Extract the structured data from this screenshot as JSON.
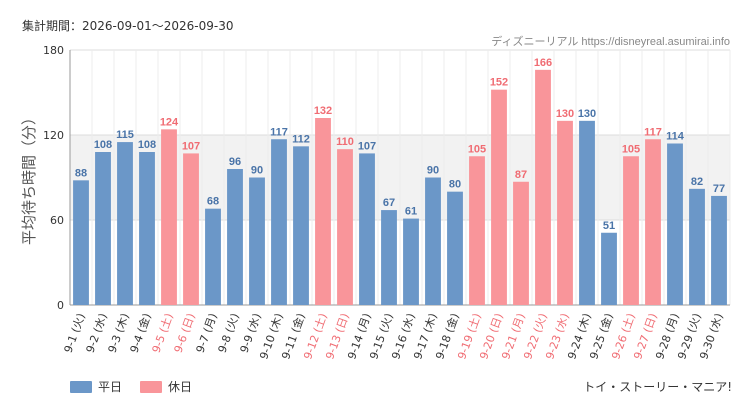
{
  "header": {
    "period_label": "集計期間：2026-09-01～2026-09-30",
    "source_label": "ディズニーリアル https://disneyreal.asumirai.info"
  },
  "footer": {
    "credit": "トイ・ストーリー・マニア!"
  },
  "colors": {
    "weekday": "#6b97c8",
    "holiday": "#f9959a",
    "weekday_text": "#4a74a8",
    "holiday_text": "#f06c73",
    "band": "#f2f2f2"
  },
  "chart_data": {
    "type": "bar",
    "ylabel": "平均待ち時間（分）",
    "ylim": [
      0,
      180
    ],
    "yticks": [
      0,
      60,
      120,
      180
    ],
    "shaded_band": [
      60,
      120
    ],
    "legend": [
      {
        "name": "平日",
        "key": "weekday"
      },
      {
        "name": "休日",
        "key": "holiday"
      }
    ],
    "categories": [
      "9-1 (火)",
      "9-2 (水)",
      "9-3 (木)",
      "9-4 (金)",
      "9-5 (土)",
      "9-6 (日)",
      "9-7 (月)",
      "9-8 (火)",
      "9-9 (水)",
      "9-10 (木)",
      "9-11 (金)",
      "9-12 (土)",
      "9-13 (日)",
      "9-14 (月)",
      "9-15 (火)",
      "9-16 (水)",
      "9-17 (木)",
      "9-18 (金)",
      "9-19 (土)",
      "9-20 (日)",
      "9-21 (月)",
      "9-22 (火)",
      "9-23 (水)",
      "9-24 (木)",
      "9-25 (金)",
      "9-26 (土)",
      "9-27 (日)",
      "9-28 (月)",
      "9-29 (火)",
      "9-30 (水)"
    ],
    "values": [
      88,
      108,
      115,
      108,
      124,
      107,
      68,
      96,
      90,
      117,
      112,
      132,
      110,
      107,
      67,
      61,
      90,
      80,
      105,
      152,
      87,
      166,
      130,
      130,
      51,
      105,
      117,
      114,
      82,
      77
    ],
    "day_type": [
      "weekday",
      "weekday",
      "weekday",
      "weekday",
      "holiday",
      "holiday",
      "weekday",
      "weekday",
      "weekday",
      "weekday",
      "weekday",
      "holiday",
      "holiday",
      "weekday",
      "weekday",
      "weekday",
      "weekday",
      "weekday",
      "holiday",
      "holiday",
      "holiday",
      "holiday",
      "holiday",
      "weekday",
      "weekday",
      "holiday",
      "holiday",
      "weekday",
      "weekday",
      "weekday"
    ]
  }
}
